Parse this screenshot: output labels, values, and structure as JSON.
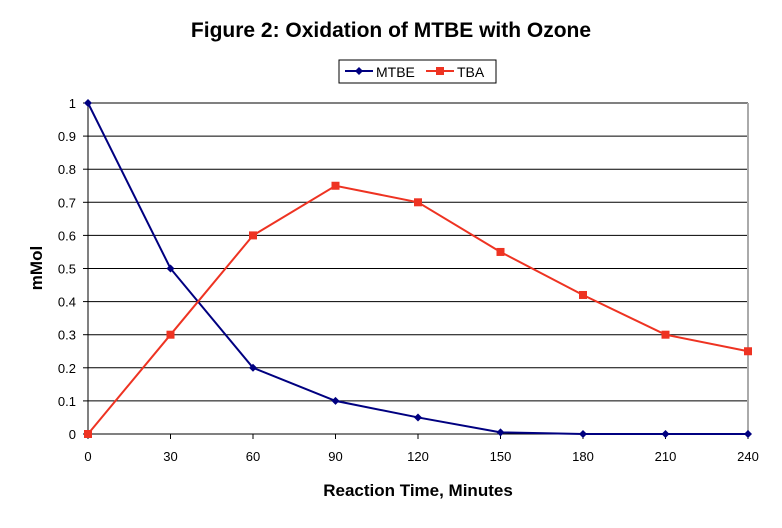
{
  "chart_data": {
    "type": "line",
    "title": "Figure 2: Oxidation of MTBE with Ozone",
    "xlabel": "Reaction Time, Minutes",
    "ylabel": "mMol",
    "x": [
      0,
      30,
      60,
      90,
      120,
      150,
      180,
      210,
      240
    ],
    "xticks": [
      "0",
      "30",
      "60",
      "90",
      "120",
      "150",
      "180",
      "210",
      "240"
    ],
    "yticks": [
      "0",
      "0.1",
      "0.2",
      "0.3",
      "0.4",
      "0.5",
      "0.6",
      "0.7",
      "0.8",
      "0.9",
      "1"
    ],
    "xlim": [
      0,
      240
    ],
    "ylim": [
      0,
      1
    ],
    "grid": "horizontal",
    "legend_position": "top",
    "series": [
      {
        "name": "MTBE",
        "color": "#000080",
        "marker": "diamond",
        "values": [
          1,
          0.5,
          0.2,
          0.1,
          0.05,
          0.005,
          0,
          0,
          0
        ]
      },
      {
        "name": "TBA",
        "color": "#ee3322",
        "marker": "square",
        "values": [
          0,
          0.3,
          0.6,
          0.75,
          0.7,
          0.55,
          0.42,
          0.3,
          0.25
        ]
      }
    ]
  }
}
